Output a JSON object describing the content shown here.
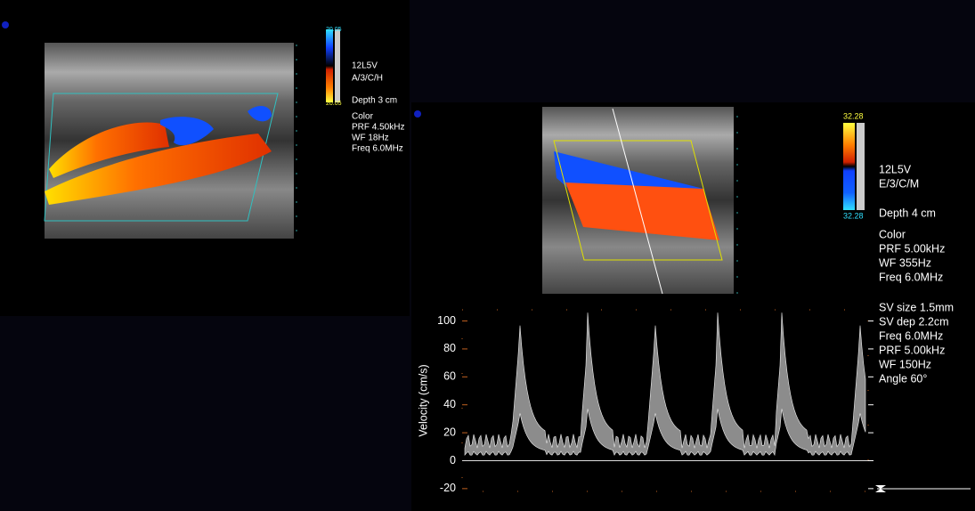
{
  "left_panel": {
    "colorbar": {
      "top": "20.05",
      "bottom": "20.05"
    },
    "info": [
      "12L5V",
      "A/3/C/H",
      "Depth 3 cm",
      "Color",
      "PRF 4.50kHz",
      "WF 18Hz",
      "Freq 6.0MHz"
    ]
  },
  "right_panel": {
    "colorbar": {
      "top": "32.28",
      "bottom": "32.28"
    },
    "info": [
      "12L5V",
      "E/3/C/M",
      "Depth 4 cm",
      "Color",
      "PRF 5.00kHz",
      "WF 355Hz",
      "Freq 6.0MHz"
    ],
    "spectrum": {
      "ylabel": "Velocity (cm/s)",
      "ylim": [
        -22,
        108
      ],
      "yticks": [
        100,
        80,
        60,
        40,
        20,
        0,
        -20
      ],
      "info": [
        "SV size 1.5mm",
        "SV dep 2.2cm",
        "Freq 6.0MHz",
        "PRF 5.00kHz",
        "WF 150Hz",
        "Angle 60°"
      ]
    }
  }
}
